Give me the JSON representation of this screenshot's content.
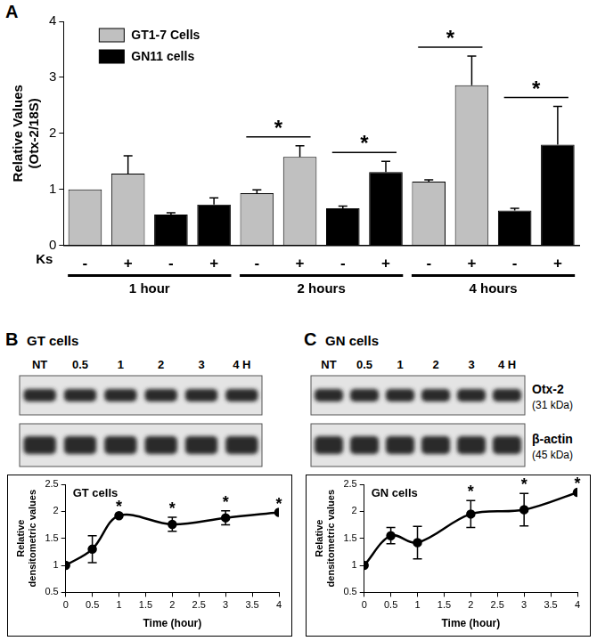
{
  "chart_data": [
    {
      "type": "bar",
      "panel": "A",
      "ylabel": [
        "Relative Values",
        "(Otx-2/18S)"
      ],
      "xlabel": "Ks",
      "categories": [
        "-",
        "+",
        "-",
        "+",
        "-",
        "+",
        "-",
        "+",
        "-",
        "+",
        "-",
        "+"
      ],
      "annotations": [
        "1 hour",
        "2 hours",
        "4 hours"
      ],
      "series": [
        {
          "name": "GT1-7 Cells",
          "color": "#c0c0c0",
          "values": [
            1.0,
            1.28,
            null,
            null,
            0.93,
            1.58,
            null,
            null,
            1.14,
            2.86,
            null,
            null
          ],
          "errors": [
            0,
            0.32,
            null,
            null,
            0.06,
            0.2,
            null,
            null,
            0.03,
            0.52,
            null,
            null
          ],
          "significance": [
            null,
            null,
            null,
            null,
            null,
            "*",
            null,
            null,
            null,
            "*",
            null,
            null
          ]
        },
        {
          "name": "GN11 cells",
          "color": "#000000",
          "values": [
            null,
            null,
            0.55,
            0.73,
            null,
            null,
            0.66,
            1.31,
            null,
            null,
            0.62,
            1.8
          ],
          "errors": [
            null,
            null,
            0.03,
            0.12,
            null,
            null,
            0.04,
            0.19,
            null,
            null,
            0.04,
            0.68
          ],
          "significance": [
            null,
            null,
            null,
            null,
            null,
            null,
            null,
            "*",
            null,
            null,
            null,
            "*"
          ]
        }
      ],
      "ylim": [
        0,
        4
      ],
      "yticks": [
        0,
        1,
        2,
        3,
        4
      ],
      "grid": false,
      "legend": "upper left"
    },
    {
      "type": "line",
      "title": "GT cells",
      "xlabel": "Time (hour)",
      "ylabel": [
        "Relative",
        "densitometric values"
      ],
      "x": [
        0,
        0.5,
        1,
        2,
        3,
        4
      ],
      "series": [
        {
          "color": "#000000",
          "marker": "circle",
          "values": [
            1.0,
            1.3,
            1.92,
            1.76,
            1.88,
            1.98
          ],
          "errors": [
            0,
            0.25,
            0,
            0.13,
            0.13,
            0
          ],
          "significance": [
            null,
            null,
            "*",
            "*",
            "*",
            "*"
          ]
        }
      ],
      "xlim": [
        0,
        4
      ],
      "xticks": [
        0,
        0.5,
        1,
        1.5,
        2,
        2.5,
        3,
        3.5,
        4
      ],
      "ylim": [
        0.5,
        2.5
      ],
      "yticks": [
        0.5,
        1,
        1.5,
        2,
        2.5
      ],
      "grid": false
    },
    {
      "type": "line",
      "title": "GN cells",
      "xlabel": "Time (hour)",
      "ylabel": [
        "Relative",
        "densitometric values"
      ],
      "x": [
        0,
        0.5,
        1,
        2,
        3,
        4
      ],
      "series": [
        {
          "color": "#000000",
          "marker": "circle",
          "values": [
            1.0,
            1.55,
            1.42,
            1.95,
            2.03,
            2.35
          ],
          "errors": [
            0,
            0.15,
            0.3,
            0.25,
            0.3,
            0
          ],
          "significance": [
            null,
            null,
            null,
            "*",
            "*",
            "*"
          ]
        }
      ],
      "xlim": [
        0,
        4
      ],
      "xticks": [
        0,
        0.5,
        1,
        1.5,
        2,
        2.5,
        3,
        3.5,
        4
      ],
      "ylim": [
        0.5,
        2.5
      ],
      "yticks": [
        0.5,
        1,
        1.5,
        2,
        2.5
      ],
      "grid": false
    }
  ],
  "blots": [
    {
      "panel": "B",
      "title": "GT cells",
      "lanes": [
        "NT",
        "0.5",
        "1",
        "2",
        "3",
        "4 H"
      ]
    },
    {
      "panel": "C",
      "title": "GN cells",
      "lanes": [
        "NT",
        "0.5",
        "1",
        "2",
        "3",
        "4 H"
      ],
      "rows": [
        {
          "label": "Otx-2",
          "note": "(31 kDa)"
        },
        {
          "label": "β-actin",
          "note": "(45 kDa)"
        }
      ]
    }
  ]
}
